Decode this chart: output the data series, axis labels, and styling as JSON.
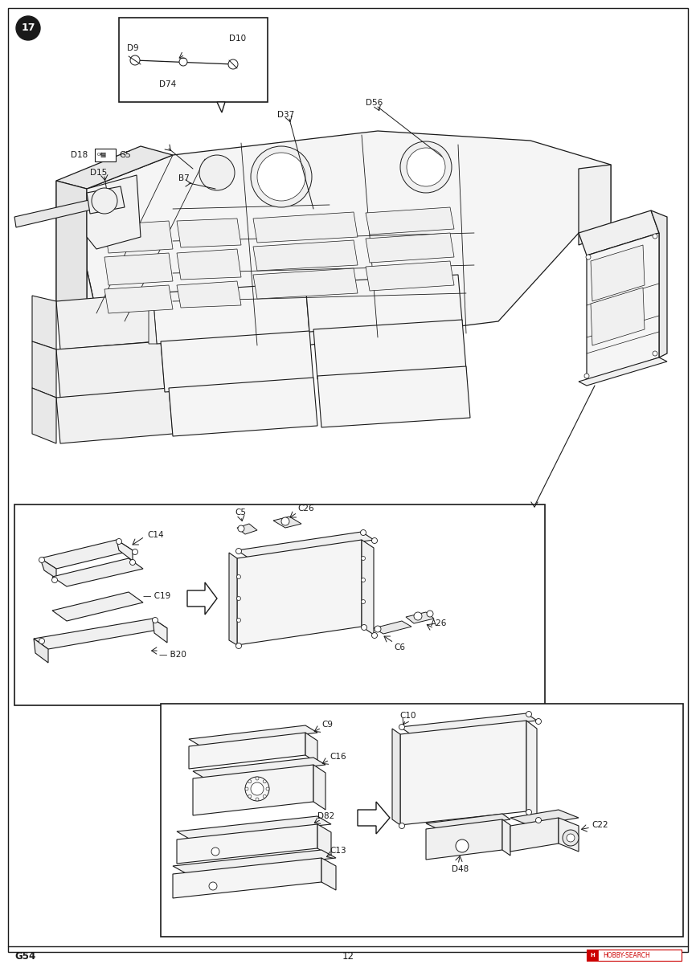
{
  "page_width": 8.66,
  "page_height": 12.0,
  "dpi": 100,
  "bg_color": "#ffffff",
  "lc": "#1a1a1a",
  "fc_light": "#f8f8f8",
  "fc_mid": "#f0f0f0",
  "fc_dark": "#e8e8e8",
  "step_number": "17",
  "page_number": "12",
  "part_code": "G54"
}
